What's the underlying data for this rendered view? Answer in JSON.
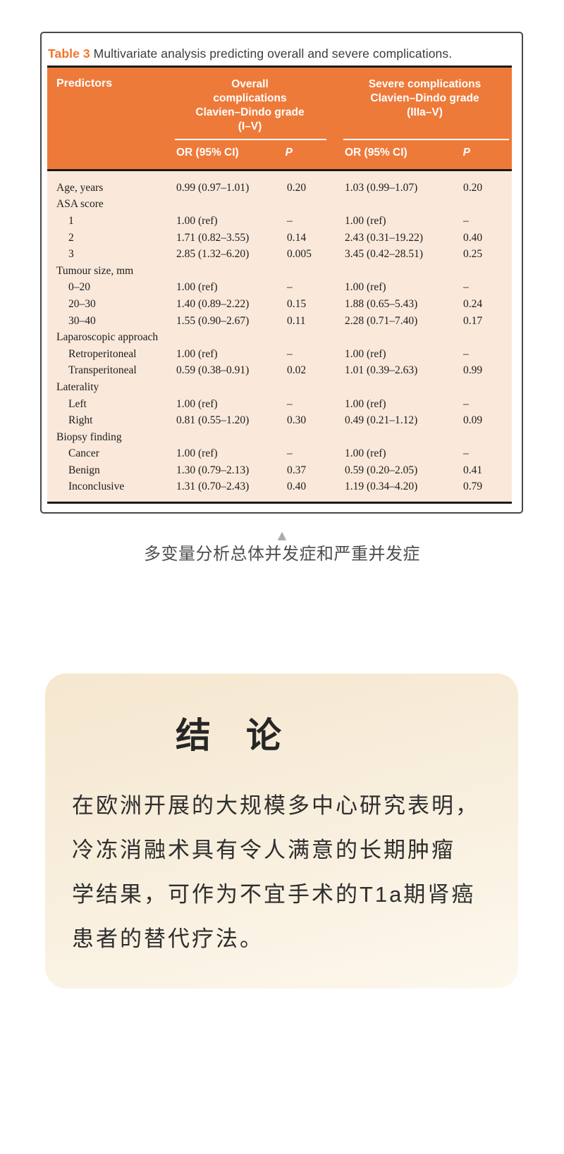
{
  "colors": {
    "accent_orange": "#ee7a3a",
    "caption_label_orange": "#f2742b",
    "table_body_cream": "#fae9db",
    "rule_black": "#1a1a1a",
    "conclusion_card_cream": "#f5e7cf",
    "triangle_gray": "#ababab"
  },
  "table_figure": {
    "caption_label": "Table 3",
    "caption_text": " Multivariate analysis predicting overall and severe complications.",
    "header": {
      "predictors": "Predictors",
      "group1_lines": [
        "Overall",
        "complications",
        "Clavien–Dindo grade",
        "(I–V)"
      ],
      "group2_lines": [
        "Severe complications",
        "Clavien–Dindo grade",
        "(IIIa–V)"
      ],
      "sub_or": "OR (95% CI)",
      "sub_p": "P"
    },
    "rows": [
      {
        "label": "Age, years",
        "indent": false,
        "or1": "0.99 (0.97–1.01)",
        "p1": "0.20",
        "or2": "1.03 (0.99–1.07)",
        "p2": "0.20"
      },
      {
        "label": "ASA score",
        "indent": false,
        "or1": "",
        "p1": "",
        "or2": "",
        "p2": ""
      },
      {
        "label": "1",
        "indent": true,
        "or1": "1.00 (ref)",
        "p1": "–",
        "or2": "1.00 (ref)",
        "p2": "–"
      },
      {
        "label": "2",
        "indent": true,
        "or1": "1.71 (0.82–3.55)",
        "p1": "0.14",
        "or2": "2.43 (0.31–19.22)",
        "p2": "0.40"
      },
      {
        "label": "3",
        "indent": true,
        "or1": "2.85 (1.32–6.20)",
        "p1": "0.005",
        "or2": "3.45 (0.42–28.51)",
        "p2": "0.25"
      },
      {
        "label": "Tumour size, mm",
        "indent": false,
        "or1": "",
        "p1": "",
        "or2": "",
        "p2": ""
      },
      {
        "label": "0–20",
        "indent": true,
        "or1": "1.00 (ref)",
        "p1": "–",
        "or2": "1.00 (ref)",
        "p2": "–"
      },
      {
        "label": "20–30",
        "indent": true,
        "or1": "1.40 (0.89–2.22)",
        "p1": "0.15",
        "or2": "1.88 (0.65–5.43)",
        "p2": "0.24"
      },
      {
        "label": "30–40",
        "indent": true,
        "or1": "1.55 (0.90–2.67)",
        "p1": "0.11",
        "or2": "2.28 (0.71–7.40)",
        "p2": "0.17"
      },
      {
        "label": "Laparoscopic approach",
        "indent": false,
        "or1": "",
        "p1": "",
        "or2": "",
        "p2": ""
      },
      {
        "label": "Retroperitoneal",
        "indent": true,
        "or1": "1.00 (ref)",
        "p1": "–",
        "or2": "1.00 (ref)",
        "p2": "–"
      },
      {
        "label": "Transperitoneal",
        "indent": true,
        "or1": "0.59 (0.38–0.91)",
        "p1": "0.02",
        "or2": "1.01 (0.39–2.63)",
        "p2": "0.99"
      },
      {
        "label": "Laterality",
        "indent": false,
        "or1": "",
        "p1": "",
        "or2": "",
        "p2": ""
      },
      {
        "label": "Left",
        "indent": true,
        "or1": "1.00 (ref)",
        "p1": "–",
        "or2": "1.00 (ref)",
        "p2": "–"
      },
      {
        "label": "Right",
        "indent": true,
        "or1": "0.81 (0.55–1.20)",
        "p1": "0.30",
        "or2": "0.49 (0.21–1.12)",
        "p2": "0.09"
      },
      {
        "label": "Biopsy finding",
        "indent": false,
        "or1": "",
        "p1": "",
        "or2": "",
        "p2": ""
      },
      {
        "label": "Cancer",
        "indent": true,
        "or1": "1.00 (ref)",
        "p1": "–",
        "or2": "1.00 (ref)",
        "p2": "–"
      },
      {
        "label": "Benign",
        "indent": true,
        "or1": "1.30 (0.79–2.13)",
        "p1": "0.37",
        "or2": "0.59 (0.20–2.05)",
        "p2": "0.41"
      },
      {
        "label": "Inconclusive",
        "indent": true,
        "or1": "1.31 (0.70–2.43)",
        "p1": "0.40",
        "or2": "1.19 (0.34–4.20)",
        "p2": "0.79"
      }
    ]
  },
  "figure_caption": {
    "triangle_icon": "▲",
    "text": "多变量分析总体并发症和严重并发症"
  },
  "conclusion": {
    "title": "结　论",
    "lines": [
      "在欧洲开展的大规模多中心研究表明，",
      "冷冻消融术具有令人满意的长期肿瘤",
      "学结果，可作为不宜手术的T1a期肾癌",
      "患者的替代疗法。"
    ]
  }
}
